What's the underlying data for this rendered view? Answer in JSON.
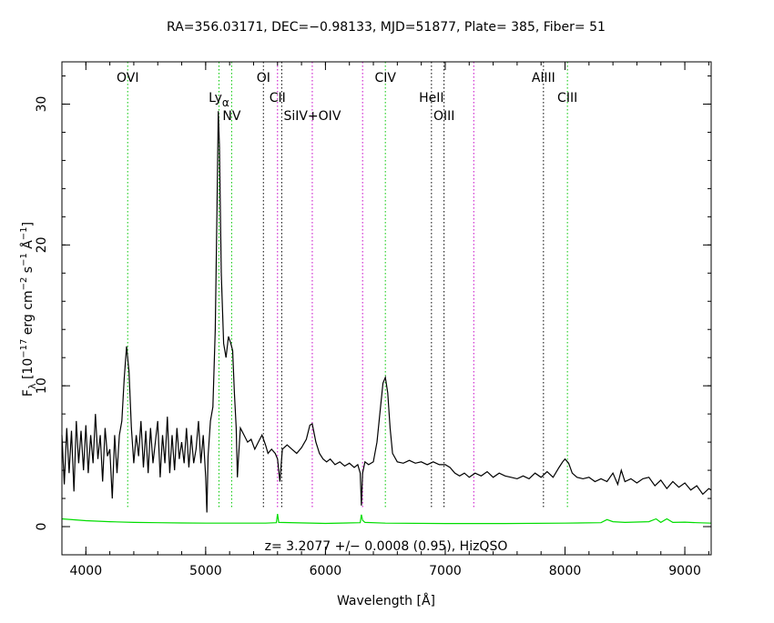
{
  "header": {
    "title": "RA=356.03171, DEC=−0.98133, MJD=51877, Plate= 385, Fiber= 51"
  },
  "chart_data": {
    "type": "line",
    "title": "RA=356.03171, DEC=−0.98133, MJD=51877, Plate= 385, Fiber= 51",
    "xlabel": "Wavelength [Å]",
    "ylabel_parts": {
      "f": "F",
      "lambda": "λ",
      "open": " [10",
      "exp17": "−17",
      "erg": " erg cm",
      "exp2": "−2",
      "s": " s",
      "exp1a": "−1",
      "ang": " Å",
      "exp1b": "−1",
      "close": "]"
    },
    "xlim": [
      3800,
      9220
    ],
    "ylim": [
      -2,
      33
    ],
    "x_ticks": [
      4000,
      5000,
      6000,
      7000,
      8000,
      9000
    ],
    "x_tick_labels": [
      "4000",
      "5000",
      "6000",
      "7000",
      "8000",
      "9000"
    ],
    "y_ticks": [
      0,
      10,
      20,
      30
    ],
    "y_tick_labels": [
      "0",
      "10",
      "20",
      "30"
    ],
    "redshift_label": "z=  3.2077 +/−  0.0008 (0.95), HizQSO",
    "colors": {
      "flux": "#000000",
      "error": "#00dd00",
      "green_line": "#00c800",
      "magenta_line": "#c800c8",
      "black_line": "#000000"
    },
    "lines": [
      {
        "name": "OVI",
        "x": 4349,
        "color": "green",
        "text": "OVI",
        "row": 1
      },
      {
        "name": "Ly-alpha",
        "x": 5111,
        "color": "green",
        "text": "Ly",
        "sub": "α",
        "row": 2
      },
      {
        "name": "NV",
        "x": 5217,
        "color": "green",
        "text": "NV",
        "row": 3
      },
      {
        "name": "OI",
        "x": 5482,
        "color": "black",
        "text": "OI",
        "row": 1
      },
      {
        "name": "CII",
        "x": 5600,
        "color": "magenta",
        "text": "CII",
        "row": 2
      },
      {
        "name": "CII-b",
        "x": 5635,
        "color": "black",
        "text": "",
        "row": 0
      },
      {
        "name": "SiIV+OIV",
        "x": 5890,
        "color": "magenta",
        "text": "SiIV+OIV",
        "row": 3
      },
      {
        "name": "mag-6300",
        "x": 6310,
        "color": "magenta",
        "text": "",
        "row": 0
      },
      {
        "name": "CIV",
        "x": 6500,
        "color": "green",
        "text": "CIV",
        "row": 1
      },
      {
        "name": "HeII",
        "x": 6885,
        "color": "black",
        "text": "HeII",
        "row": 2
      },
      {
        "name": "OIII",
        "x": 6990,
        "color": "black",
        "text": "OIII",
        "row": 3
      },
      {
        "name": "mag-7250",
        "x": 7238,
        "color": "magenta",
        "text": "",
        "row": 0
      },
      {
        "name": "AlIII",
        "x": 7820,
        "color": "black",
        "text": "AlIII",
        "row": 1
      },
      {
        "name": "CIII",
        "x": 8020,
        "color": "green",
        "text": "CIII",
        "row": 2
      }
    ],
    "series": [
      {
        "name": "flux",
        "color": "#000000",
        "points": [
          [
            3800,
            6.5
          ],
          [
            3820,
            3.0
          ],
          [
            3840,
            7.0
          ],
          [
            3860,
            3.8
          ],
          [
            3880,
            6.8
          ],
          [
            3900,
            2.5
          ],
          [
            3920,
            7.5
          ],
          [
            3940,
            4.5
          ],
          [
            3960,
            6.8
          ],
          [
            3980,
            4.0
          ],
          [
            4000,
            7.2
          ],
          [
            4020,
            3.8
          ],
          [
            4040,
            6.5
          ],
          [
            4060,
            4.5
          ],
          [
            4080,
            8.0
          ],
          [
            4100,
            4.8
          ],
          [
            4120,
            6.5
          ],
          [
            4140,
            3.2
          ],
          [
            4160,
            7.0
          ],
          [
            4180,
            5.0
          ],
          [
            4200,
            5.5
          ],
          [
            4220,
            2.0
          ],
          [
            4240,
            6.5
          ],
          [
            4260,
            3.8
          ],
          [
            4280,
            6.5
          ],
          [
            4300,
            7.5
          ],
          [
            4320,
            10.5
          ],
          [
            4340,
            12.8
          ],
          [
            4360,
            11.0
          ],
          [
            4380,
            7.0
          ],
          [
            4400,
            4.5
          ],
          [
            4420,
            6.5
          ],
          [
            4440,
            5.0
          ],
          [
            4460,
            7.5
          ],
          [
            4480,
            4.2
          ],
          [
            4500,
            6.8
          ],
          [
            4520,
            3.8
          ],
          [
            4540,
            7.0
          ],
          [
            4560,
            4.5
          ],
          [
            4580,
            6.0
          ],
          [
            4600,
            7.5
          ],
          [
            4620,
            3.5
          ],
          [
            4640,
            6.5
          ],
          [
            4660,
            4.5
          ],
          [
            4680,
            7.8
          ],
          [
            4700,
            3.8
          ],
          [
            4720,
            6.5
          ],
          [
            4740,
            4.0
          ],
          [
            4760,
            7.0
          ],
          [
            4780,
            4.8
          ],
          [
            4800,
            6.0
          ],
          [
            4820,
            4.5
          ],
          [
            4840,
            7.0
          ],
          [
            4860,
            4.2
          ],
          [
            4880,
            6.5
          ],
          [
            4900,
            4.5
          ],
          [
            4920,
            5.5
          ],
          [
            4940,
            7.5
          ],
          [
            4960,
            4.5
          ],
          [
            4980,
            6.5
          ],
          [
            5000,
            3.5
          ],
          [
            5010,
            1.0
          ],
          [
            5020,
            5.0
          ],
          [
            5040,
            7.5
          ],
          [
            5060,
            8.5
          ],
          [
            5080,
            14.0
          ],
          [
            5095,
            23.0
          ],
          [
            5105,
            29.5
          ],
          [
            5115,
            27.0
          ],
          [
            5130,
            18.0
          ],
          [
            5150,
            13.0
          ],
          [
            5170,
            12.0
          ],
          [
            5190,
            13.5
          ],
          [
            5210,
            13.0
          ],
          [
            5225,
            12.5
          ],
          [
            5240,
            9.5
          ],
          [
            5255,
            7.0
          ],
          [
            5265,
            3.5
          ],
          [
            5275,
            5.0
          ],
          [
            5290,
            7.0
          ],
          [
            5320,
            6.5
          ],
          [
            5350,
            6.0
          ],
          [
            5380,
            6.2
          ],
          [
            5410,
            5.5
          ],
          [
            5440,
            6.0
          ],
          [
            5470,
            6.5
          ],
          [
            5500,
            5.8
          ],
          [
            5520,
            5.2
          ],
          [
            5550,
            5.5
          ],
          [
            5580,
            5.2
          ],
          [
            5600,
            4.8
          ],
          [
            5620,
            3.2
          ],
          [
            5640,
            5.5
          ],
          [
            5680,
            5.8
          ],
          [
            5720,
            5.5
          ],
          [
            5760,
            5.2
          ],
          [
            5800,
            5.6
          ],
          [
            5840,
            6.2
          ],
          [
            5870,
            7.2
          ],
          [
            5890,
            7.3
          ],
          [
            5920,
            6.0
          ],
          [
            5950,
            5.2
          ],
          [
            5980,
            4.8
          ],
          [
            6010,
            4.6
          ],
          [
            6040,
            4.8
          ],
          [
            6080,
            4.4
          ],
          [
            6120,
            4.6
          ],
          [
            6160,
            4.3
          ],
          [
            6200,
            4.5
          ],
          [
            6240,
            4.2
          ],
          [
            6270,
            4.4
          ],
          [
            6290,
            3.8
          ],
          [
            6300,
            1.5
          ],
          [
            6310,
            3.8
          ],
          [
            6330,
            4.6
          ],
          [
            6360,
            4.4
          ],
          [
            6400,
            4.6
          ],
          [
            6430,
            6.0
          ],
          [
            6460,
            8.5
          ],
          [
            6480,
            10.2
          ],
          [
            6500,
            10.6
          ],
          [
            6520,
            9.5
          ],
          [
            6540,
            7.0
          ],
          [
            6560,
            5.2
          ],
          [
            6600,
            4.6
          ],
          [
            6650,
            4.5
          ],
          [
            6700,
            4.7
          ],
          [
            6750,
            4.5
          ],
          [
            6800,
            4.6
          ],
          [
            6850,
            4.4
          ],
          [
            6900,
            4.6
          ],
          [
            6950,
            4.4
          ],
          [
            7000,
            4.4
          ],
          [
            7040,
            4.2
          ],
          [
            7080,
            3.8
          ],
          [
            7120,
            3.6
          ],
          [
            7160,
            3.8
          ],
          [
            7200,
            3.5
          ],
          [
            7250,
            3.8
          ],
          [
            7300,
            3.6
          ],
          [
            7350,
            3.9
          ],
          [
            7400,
            3.5
          ],
          [
            7450,
            3.8
          ],
          [
            7500,
            3.6
          ],
          [
            7550,
            3.5
          ],
          [
            7600,
            3.4
          ],
          [
            7650,
            3.6
          ],
          [
            7700,
            3.4
          ],
          [
            7750,
            3.8
          ],
          [
            7800,
            3.5
          ],
          [
            7850,
            3.9
          ],
          [
            7900,
            3.5
          ],
          [
            7950,
            4.2
          ],
          [
            7980,
            4.6
          ],
          [
            8000,
            4.8
          ],
          [
            8030,
            4.5
          ],
          [
            8060,
            3.8
          ],
          [
            8100,
            3.5
          ],
          [
            8150,
            3.4
          ],
          [
            8200,
            3.5
          ],
          [
            8250,
            3.2
          ],
          [
            8300,
            3.4
          ],
          [
            8350,
            3.2
          ],
          [
            8400,
            3.8
          ],
          [
            8440,
            3.0
          ],
          [
            8470,
            4.0
          ],
          [
            8500,
            3.2
          ],
          [
            8550,
            3.4
          ],
          [
            8600,
            3.1
          ],
          [
            8650,
            3.4
          ],
          [
            8700,
            3.5
          ],
          [
            8750,
            2.9
          ],
          [
            8800,
            3.3
          ],
          [
            8850,
            2.7
          ],
          [
            8900,
            3.2
          ],
          [
            8950,
            2.8
          ],
          [
            9000,
            3.1
          ],
          [
            9050,
            2.6
          ],
          [
            9100,
            2.9
          ],
          [
            9150,
            2.3
          ],
          [
            9200,
            2.7
          ],
          [
            9220,
            2.6
          ]
        ]
      },
      {
        "name": "error",
        "color": "#00dd00",
        "points": [
          [
            3800,
            0.55
          ],
          [
            4000,
            0.42
          ],
          [
            4200,
            0.35
          ],
          [
            4400,
            0.3
          ],
          [
            4600,
            0.28
          ],
          [
            4800,
            0.26
          ],
          [
            5000,
            0.25
          ],
          [
            5500,
            0.25
          ],
          [
            5590,
            0.28
          ],
          [
            5600,
            0.9
          ],
          [
            5610,
            0.3
          ],
          [
            6000,
            0.23
          ],
          [
            6290,
            0.28
          ],
          [
            6300,
            0.85
          ],
          [
            6310,
            0.45
          ],
          [
            6330,
            0.3
          ],
          [
            6500,
            0.25
          ],
          [
            7000,
            0.22
          ],
          [
            7500,
            0.22
          ],
          [
            8000,
            0.25
          ],
          [
            8300,
            0.28
          ],
          [
            8350,
            0.5
          ],
          [
            8400,
            0.35
          ],
          [
            8500,
            0.3
          ],
          [
            8700,
            0.35
          ],
          [
            8760,
            0.55
          ],
          [
            8800,
            0.3
          ],
          [
            8850,
            0.55
          ],
          [
            8900,
            0.3
          ],
          [
            9000,
            0.32
          ],
          [
            9100,
            0.28
          ],
          [
            9220,
            0.25
          ]
        ]
      }
    ]
  }
}
